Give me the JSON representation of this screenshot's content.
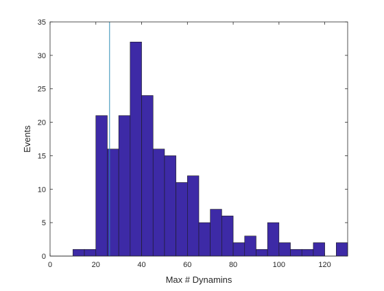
{
  "chart_data": {
    "type": "bar",
    "xlabel": "Max # Dynamins",
    "ylabel": "Events",
    "xlim": [
      0,
      130
    ],
    "ylim": [
      0,
      35
    ],
    "xticks": [
      0,
      20,
      40,
      60,
      80,
      100,
      120
    ],
    "yticks": [
      0,
      5,
      10,
      15,
      20,
      25,
      30,
      35
    ],
    "bin_width": 5,
    "bin_edges_start": [
      0,
      5,
      10,
      15,
      20,
      25,
      30,
      35,
      40,
      45,
      50,
      55,
      60,
      65,
      70,
      75,
      80,
      85,
      90,
      95,
      100,
      105,
      110,
      115,
      120,
      125
    ],
    "values": [
      0,
      0,
      1,
      1,
      21,
      16,
      21,
      32,
      24,
      16,
      15,
      11,
      12,
      5,
      7,
      6,
      2,
      3,
      1,
      5,
      2,
      1,
      1,
      2,
      0,
      2
    ],
    "reference_line_x": 26,
    "grid": false,
    "colors": {
      "bar_fill": "#3d2aa6",
      "bar_edge": "#1a1a1a",
      "reference_line": "#2c8cb4",
      "axis": "#262626"
    }
  }
}
